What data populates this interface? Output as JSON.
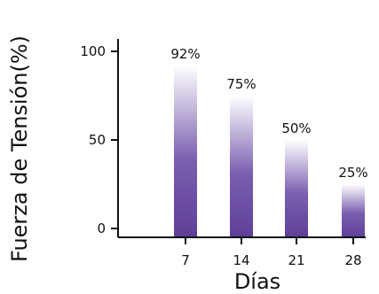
{
  "chart_data": {
    "type": "bar",
    "categories": [
      "7",
      "14",
      "21",
      "28"
    ],
    "values": [
      92,
      75,
      50,
      25
    ],
    "data_labels": [
      "92%",
      "75%",
      "50%",
      "25%"
    ],
    "yticks": [
      0,
      50,
      100
    ],
    "ylim": [
      0,
      100
    ],
    "xlabel": "Días",
    "ylabel": "Fuerza de Tensión(%)",
    "grid": false,
    "bar_color_top": "#ffffff",
    "bar_color_bottom": "#5e3f99"
  }
}
